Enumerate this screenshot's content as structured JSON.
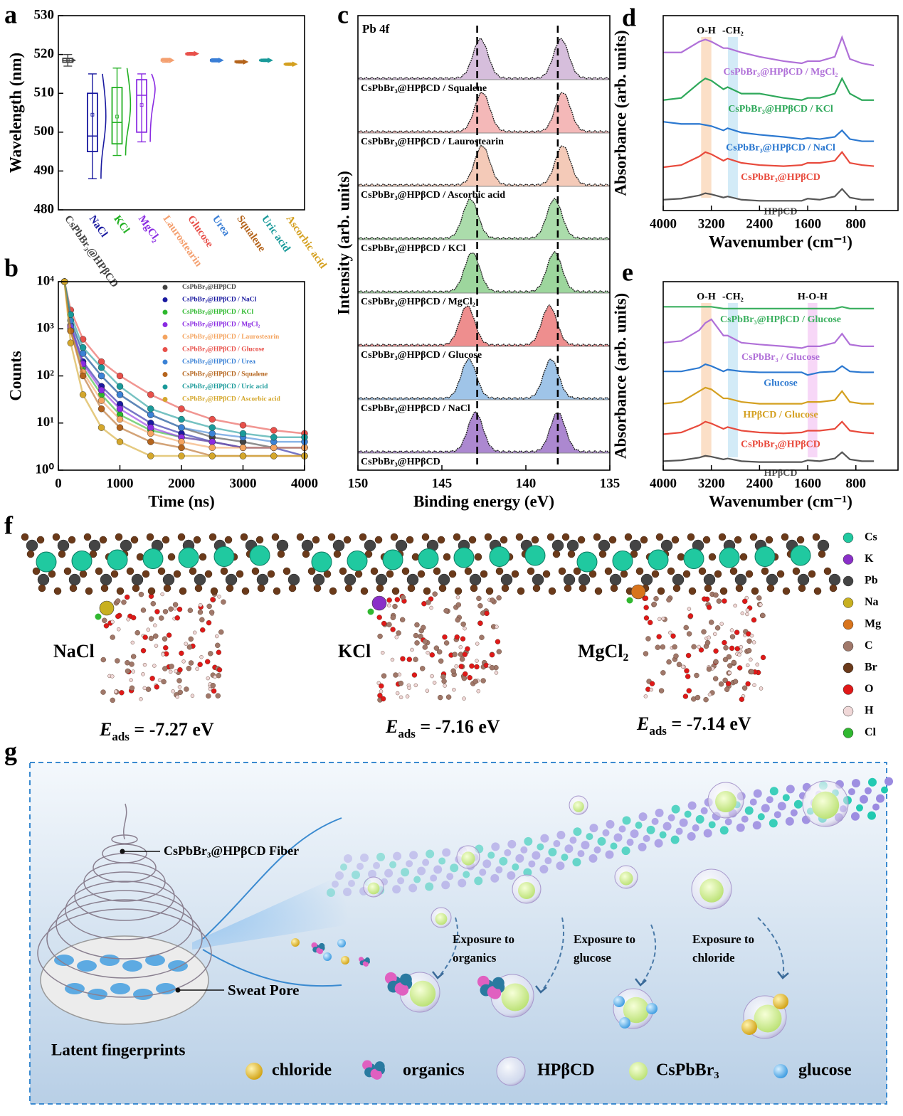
{
  "chart_data": [
    {
      "panel": "a",
      "type": "box",
      "ylabel": "Wavelength (nm)",
      "categories": [
        "CsPbBr₃@HPβCD",
        "NaCl",
        "KCl",
        "MgCl₂",
        "Laurostearin",
        "Glucose",
        "Urea",
        "Squalene",
        "Uric acid",
        "Ascorbic acid"
      ],
      "colors": [
        "#444444",
        "#1a1aa0",
        "#22b022",
        "#8a2be2",
        "#f4a070",
        "#e8504a",
        "#3b7fd6",
        "#b5651d",
        "#1a9a9a",
        "#d4a020"
      ],
      "min": [
        517,
        488,
        494,
        497.5,
        518,
        519.8,
        518.1,
        517.8,
        518.2,
        517.2
      ],
      "q1": [
        518,
        495,
        497,
        500,
        518.3,
        520,
        518.3,
        518,
        518.4,
        517.4
      ],
      "median": [
        518.5,
        499,
        502.5,
        509.5,
        518.5,
        520.2,
        518.5,
        518.1,
        518.5,
        517.5
      ],
      "q3": [
        519,
        510,
        511.5,
        513.5,
        518.8,
        520.3,
        518.7,
        518.3,
        518.6,
        517.6
      ],
      "max": [
        520,
        515,
        516.5,
        515,
        519,
        520.5,
        518.9,
        518.4,
        518.8,
        517.8
      ],
      "mean": [
        518.5,
        504.5,
        504,
        507,
        518.5,
        520.2,
        518.5,
        518.1,
        518.5,
        517.5
      ],
      "ylim": [
        480,
        530
      ],
      "yticks": [
        480,
        490,
        500,
        510,
        520,
        530
      ]
    },
    {
      "panel": "b",
      "type": "scatter",
      "xlabel": "Time (ns)",
      "ylabel": "Counts",
      "log_scale": true,
      "x": [
        100,
        200,
        400,
        700,
        1000,
        1500,
        2000,
        2500,
        3000,
        3500,
        4000
      ],
      "series": [
        {
          "name": "CsPbBr₃@HPβCD",
          "color": "#444444",
          "values": [
            10000,
            1500,
            300,
            100,
            40,
            15,
            8,
            5,
            4,
            3,
            3
          ]
        },
        {
          "name": "CsPbBr₃@HPβCD / NaCl",
          "color": "#1a1aa0",
          "values": [
            10000,
            1200,
            200,
            60,
            25,
            10,
            6,
            4,
            3,
            3,
            2
          ]
        },
        {
          "name": "CsPbBr₃@HPβCD / KCl",
          "color": "#2db82d",
          "values": [
            10000,
            1000,
            150,
            40,
            15,
            7,
            5,
            4,
            3,
            3,
            3
          ]
        },
        {
          "name": "CsPbBr₃@HPβCD / MgCl₂",
          "color": "#8a2be2",
          "values": [
            10000,
            1100,
            180,
            50,
            20,
            8,
            5,
            4,
            3,
            3,
            3
          ]
        },
        {
          "name": "CsPbBr₃@HPβCD / Laurostearin",
          "color": "#f4a460",
          "values": [
            10000,
            900,
            120,
            30,
            12,
            6,
            4,
            3,
            3,
            3,
            3
          ]
        },
        {
          "name": "CsPbBr₃@HPβCD / Glucose",
          "color": "#e8504a",
          "values": [
            10000,
            2500,
            600,
            200,
            100,
            40,
            20,
            12,
            9,
            7,
            6
          ]
        },
        {
          "name": "CsPbBr₃@HPβCD / Urea",
          "color": "#3b82d6",
          "values": [
            10000,
            1500,
            300,
            100,
            40,
            15,
            8,
            6,
            5,
            4,
            4
          ]
        },
        {
          "name": "CsPbBr₃@HPβCD / Squalene",
          "color": "#b5651d",
          "values": [
            10000,
            900,
            100,
            20,
            8,
            4,
            3,
            2,
            2,
            2,
            2
          ]
        },
        {
          "name": "CsPbBr₃@HPβCD / Uric acid",
          "color": "#1a9a9a",
          "values": [
            10000,
            2000,
            400,
            150,
            60,
            20,
            12,
            8,
            6,
            5,
            5
          ]
        },
        {
          "name": "CsPbBr₃@HPβCD / Ascorbic acid",
          "color": "#d4a72c",
          "values": [
            10000,
            500,
            40,
            8,
            4,
            2,
            2,
            2,
            2,
            2,
            2
          ]
        }
      ],
      "xlim": [
        0,
        4000
      ],
      "xticks": [
        0,
        1000,
        2000,
        3000,
        4000
      ],
      "ylim": [
        1,
        10000
      ],
      "yticks": [
        {
          "value": 1,
          "label": "10⁰"
        },
        {
          "value": 10,
          "label": "10¹"
        },
        {
          "value": 100,
          "label": "10²"
        },
        {
          "value": 1000,
          "label": "10³"
        },
        {
          "value": 10000,
          "label": "10⁴"
        }
      ]
    },
    {
      "panel": "c",
      "type": "peaks",
      "xlabel": "Binding energy (eV)",
      "ylabel": "Intensity (arb. units)",
      "annotation": "Pb 4f",
      "series": [
        {
          "name": "CsPbBr₃@HPβCD / Squalene",
          "color": "#c8a8d0",
          "peaks": [
            142.7,
            137.9
          ]
        },
        {
          "name": "CsPbBr₃@HPβCD / Laurostearin",
          "color": "#f0a0a0",
          "peaks": [
            142.6,
            137.8
          ]
        },
        {
          "name": "CsPbBr₃@HPβCD / Ascorbic acid",
          "color": "#f0b8a0",
          "peaks": [
            142.6,
            137.8
          ]
        },
        {
          "name": "CsPbBr₃@HPβCD / KCl",
          "color": "#8fd08f",
          "peaks": [
            143.3,
            138.3
          ]
        },
        {
          "name": "CsPbBr₃@HPβCD / MgCl₂",
          "color": "#7cc87c",
          "peaks": [
            143.2,
            138.3
          ]
        },
        {
          "name": "CsPbBr₃@HPβCD / Glucose",
          "color": "#e86868",
          "peaks": [
            143.5,
            138.6
          ]
        },
        {
          "name": "CsPbBr₃@HPβCD / NaCl",
          "color": "#7fb0e0",
          "peaks": [
            143.4,
            138.5
          ]
        },
        {
          "name": "CsPbBr₃@HPβCD",
          "color": "#9060c0",
          "peaks": [
            143.0,
            138.1
          ]
        }
      ],
      "reference_lines": [
        142.9,
        138.1
      ],
      "xlim": [
        150,
        135
      ],
      "xticks": [
        150,
        145,
        140,
        135
      ]
    },
    {
      "panel": "d",
      "type": "line",
      "xlabel": "Wavenumber (cm⁻¹)",
      "ylabel": "Absorbance (arb. units)",
      "x": [
        4000,
        3700,
        3400,
        3300,
        3200,
        3000,
        2930,
        2700,
        2400,
        2000,
        1700,
        1600,
        1400,
        1150,
        1030,
        900,
        700,
        500
      ],
      "series": [
        {
          "name": "HPβCD",
          "color": "#555555",
          "values": [
            1.0,
            1.05,
            1.2,
            1.3,
            1.25,
            1.1,
            1.15,
            1.0,
            0.95,
            0.95,
            0.95,
            1.05,
            1.0,
            1.15,
            1.5,
            1.1,
            1.0,
            1.0
          ]
        },
        {
          "name": "CsPbBr₃@HPβCD",
          "color": "#e84a3c",
          "values": [
            2.5,
            2.6,
            3.0,
            3.2,
            3.1,
            2.8,
            2.9,
            2.7,
            2.6,
            2.55,
            2.6,
            2.7,
            2.7,
            2.8,
            3.2,
            2.7,
            2.6,
            2.55
          ]
        },
        {
          "name": "CsPbBr₃@HPβCD / NaCl",
          "color": "#2b78d0",
          "values": [
            4.6,
            4.5,
            4.5,
            4.45,
            4.4,
            4.2,
            4.3,
            4.1,
            4.0,
            3.9,
            3.8,
            3.85,
            3.8,
            3.9,
            4.2,
            3.8,
            3.7,
            3.7
          ]
        },
        {
          "name": "CsPbBr₃@HPβCD / KCl",
          "color": "#2ea85a",
          "values": [
            5.6,
            5.7,
            6.4,
            6.6,
            6.5,
            6.1,
            6.2,
            5.9,
            5.9,
            5.7,
            5.6,
            5.7,
            5.7,
            5.9,
            6.6,
            5.9,
            5.6,
            5.6
          ]
        },
        {
          "name": "CsPbBr₃@HPβCD / MgCl₂",
          "color": "#b070d8",
          "values": [
            7.8,
            7.8,
            8.3,
            8.4,
            8.3,
            8.0,
            8.0,
            7.8,
            7.6,
            7.4,
            7.3,
            7.4,
            7.4,
            7.6,
            8.5,
            7.5,
            7.3,
            7.2
          ]
        }
      ],
      "bands": [
        {
          "label": "O-H",
          "from": 3370,
          "to": 3200,
          "color": "#f8c090"
        },
        {
          "label": "-CH₂",
          "from": 2925,
          "to": 2760,
          "color": "#a8d8f0"
        }
      ],
      "xlim": [
        4000,
        100
      ],
      "xticks": [
        4000,
        3200,
        2400,
        1600,
        800
      ],
      "ylim": [
        0.5,
        9.5
      ]
    },
    {
      "panel": "e",
      "type": "line",
      "xlabel": "Wavenumber (cm⁻¹)",
      "ylabel": "Absorbance (arb. units)",
      "x": [
        4000,
        3700,
        3400,
        3300,
        3200,
        3000,
        2930,
        2700,
        2400,
        2000,
        1700,
        1600,
        1400,
        1150,
        1030,
        900,
        700,
        500
      ],
      "series": [
        {
          "name": "HPβCD",
          "color": "#555555",
          "values": [
            1.0,
            1.05,
            1.2,
            1.3,
            1.25,
            1.1,
            1.15,
            1.0,
            0.95,
            0.95,
            0.95,
            1.05,
            1.0,
            1.15,
            1.5,
            1.1,
            1.0,
            1.0
          ]
        },
        {
          "name": "CsPbBr₃@HPβCD",
          "color": "#e84a3c",
          "values": [
            2.5,
            2.6,
            3.0,
            3.2,
            3.1,
            2.8,
            2.9,
            2.7,
            2.6,
            2.55,
            2.6,
            2.7,
            2.7,
            2.8,
            3.2,
            2.7,
            2.6,
            2.55
          ]
        },
        {
          "name": "HPβCD / Glucose",
          "color": "#d4a020",
          "values": [
            4.2,
            4.3,
            4.9,
            5.1,
            5.0,
            4.5,
            4.5,
            4.3,
            4.2,
            4.2,
            4.2,
            4.3,
            4.3,
            4.4,
            4.9,
            4.3,
            4.2,
            4.2
          ]
        },
        {
          "name": "Glucose",
          "color": "#2b78d0",
          "values": [
            6.0,
            6.0,
            6.2,
            6.4,
            6.3,
            6.0,
            6.1,
            6.0,
            5.95,
            5.95,
            5.95,
            5.8,
            5.95,
            6.0,
            6.3,
            6.0,
            5.95,
            5.95
          ]
        },
        {
          "name": "CsPbBr₃ / Glucose",
          "color": "#b070d8",
          "values": [
            7.6,
            7.7,
            8.3,
            8.7,
            8.9,
            8.0,
            8.0,
            7.6,
            7.5,
            7.4,
            7.3,
            7.4,
            7.4,
            7.6,
            8.1,
            7.5,
            7.4,
            7.4
          ]
        },
        {
          "name": "CsPbBr₃@HPβCD / Glucose",
          "color": "#3cb060",
          "values": [
            9.6,
            9.6,
            9.6,
            9.6,
            9.6,
            9.5,
            9.5,
            9.5,
            9.5,
            9.5,
            9.5,
            9.5,
            9.5,
            9.5,
            9.6,
            9.5,
            9.5,
            9.5
          ]
        }
      ],
      "bands": [
        {
          "label": "O-H",
          "from": 3370,
          "to": 3200,
          "color": "#f8c090"
        },
        {
          "label": "-CH₂",
          "from": 2925,
          "to": 2760,
          "color": "#a8d8f0"
        },
        {
          "label": "H-O-H",
          "from": 1600,
          "to": 1440,
          "color": "#f0b0f0"
        }
      ],
      "xlim": [
        4000,
        100
      ],
      "xticks": [
        4000,
        3200,
        2400,
        1600,
        800
      ],
      "ylim": [
        0.5,
        11
      ]
    }
  ],
  "figure_panels": {
    "f": {
      "panel": "f",
      "structures": [
        {
          "label": "NaCl",
          "ion_color": "#c8b020",
          "energy_symbol": "E",
          "energy_subscript": "ads",
          "energy_value": " = -7.27 eV"
        },
        {
          "label": "KCl",
          "ion_color": "#8a30c8",
          "energy_symbol": "E",
          "energy_subscript": "ads",
          "energy_value": " = -7.16 eV"
        },
        {
          "label": "MgCl₂",
          "ion_color": "#d8741c",
          "energy_symbol": "E",
          "energy_subscript": "ads",
          "energy_value": " = -7.14 eV"
        }
      ],
      "legend": [
        {
          "name": "Cs",
          "color": "#20c9a0"
        },
        {
          "name": "K",
          "color": "#8a30c8"
        },
        {
          "name": "Pb",
          "color": "#444444"
        },
        {
          "name": "Na",
          "color": "#c8b020"
        },
        {
          "name": "Mg",
          "color": "#d8741c"
        },
        {
          "name": "C",
          "color": "#a0786a"
        },
        {
          "name": "Br",
          "color": "#6b3a1a"
        },
        {
          "name": "O",
          "color": "#e01818"
        },
        {
          "name": "H",
          "color": "#f0d8d8"
        },
        {
          "name": "Cl",
          "color": "#30b830"
        }
      ]
    },
    "g": {
      "panel": "g",
      "fiber_label": "CsPbBr₃@HPβCD Fiber",
      "pore_label": "Sweat Pore",
      "caption": "Latent fingerprints",
      "exposures": [
        [
          "Exposure to",
          "organics"
        ],
        [
          "Exposure to",
          "glucose"
        ],
        [
          "Exposure to",
          "chloride"
        ]
      ],
      "legend": [
        "chloride",
        "organics",
        "HPβCD",
        "CsPbBr₃",
        "glucose"
      ]
    }
  }
}
